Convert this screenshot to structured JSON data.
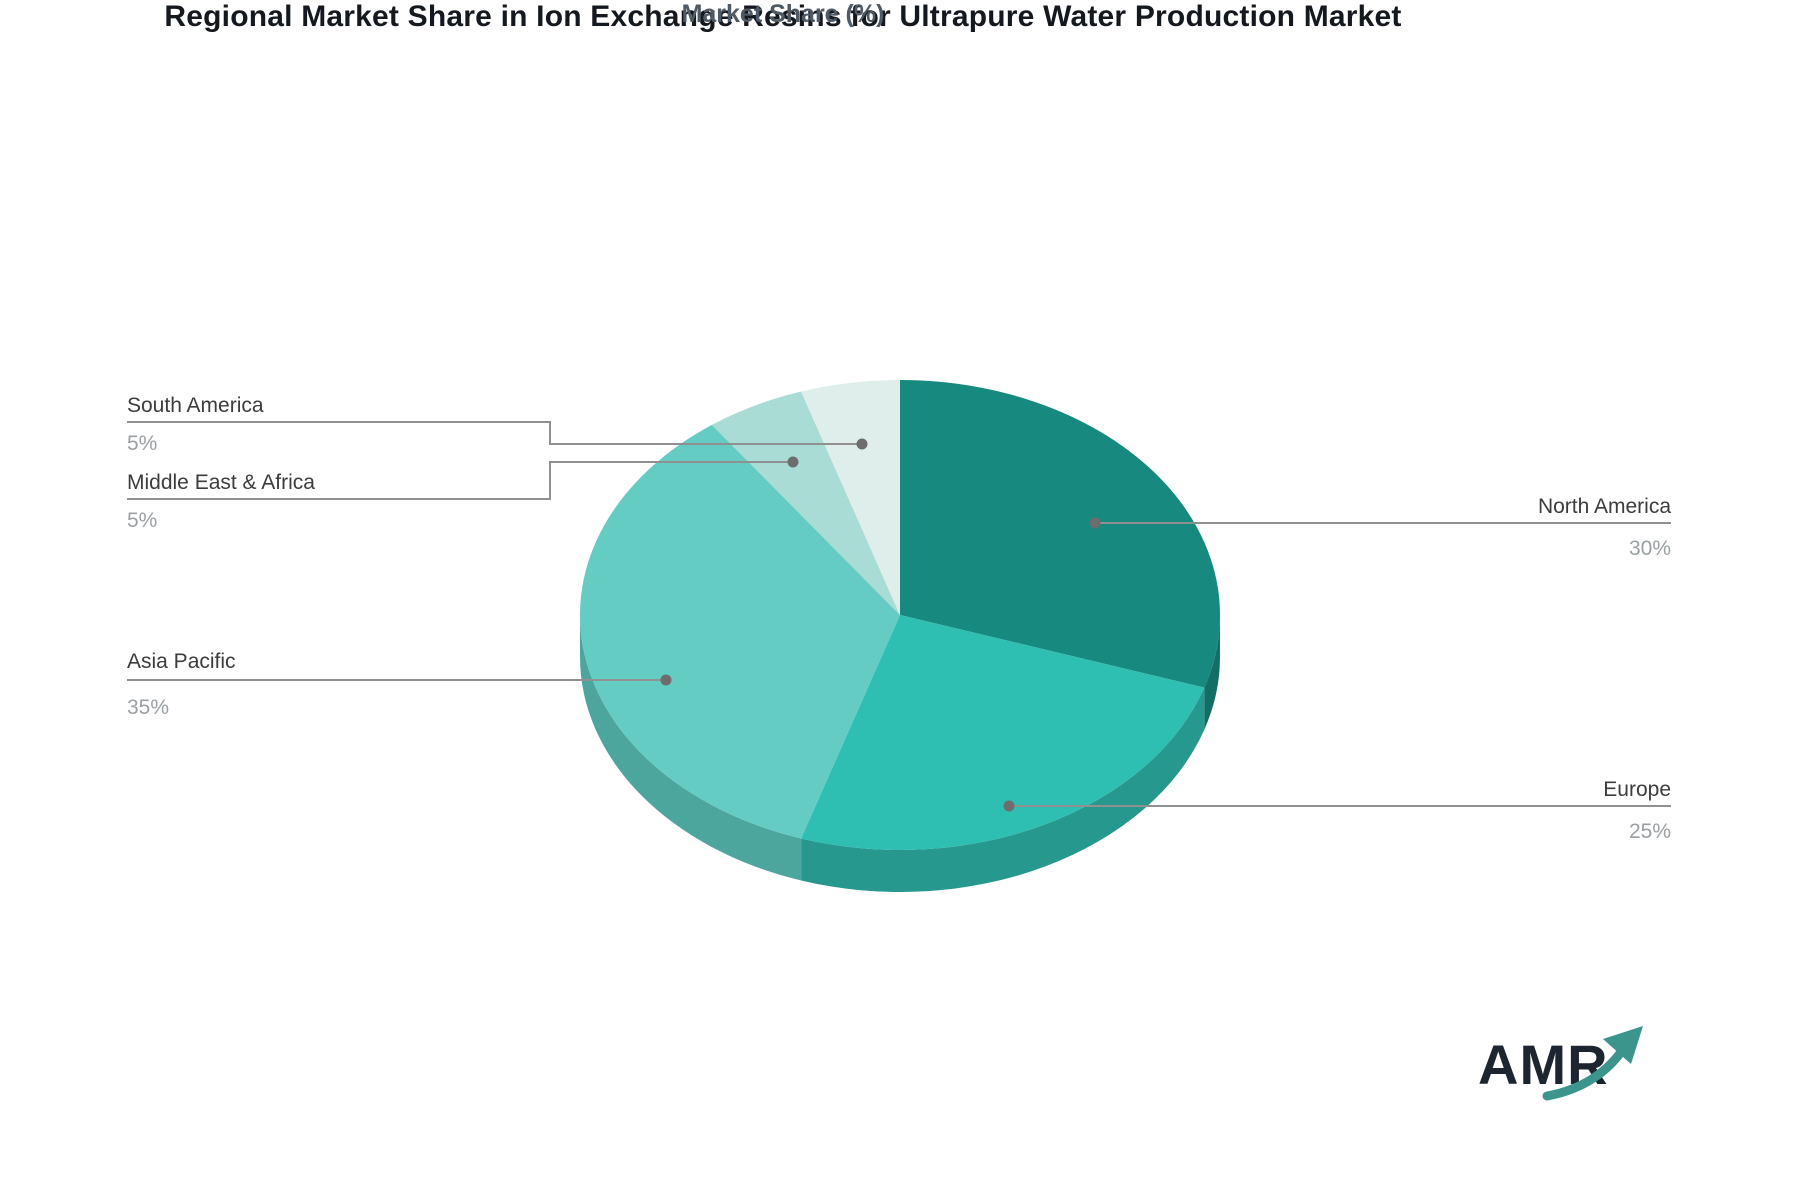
{
  "title": "Regional Market Share in Ion Exchange Resins for Ultrapure Water Production Market",
  "subtitle": "Market Share (%)",
  "logo": {
    "text": "AMR"
  },
  "colors": {
    "background": "#ffffff",
    "title_text": "#14181f",
    "subtitle_text": "#4e5a66",
    "label_text": "#3c3c3c",
    "value_text": "#9aa0a3",
    "leader_line": "#909090",
    "leader_dot": "#6d6d6d",
    "logo_text": "#1d2531",
    "logo_arrow": "#3b958c"
  },
  "chart_data": {
    "type": "pie",
    "title": "Regional Market Share in Ion Exchange Resins for Ultrapure Water Production Market",
    "subtitle": "Market Share (%)",
    "unit": "%",
    "start_angle_deg": 0,
    "direction": "clockwise",
    "effect_3d": true,
    "legend_position": "callout-labels",
    "slices": [
      {
        "label": "North America",
        "value": 30,
        "display": "30%",
        "color": "#17897f",
        "depth_color": "#136e66"
      },
      {
        "label": "Europe",
        "value": 25,
        "display": "25%",
        "color": "#2fbeb2",
        "depth_color": "#26988e"
      },
      {
        "label": "Asia Pacific",
        "value": 35,
        "display": "35%",
        "color": "#64ccc2",
        "depth_color": "#4da69d"
      },
      {
        "label": "Middle East & Africa",
        "value": 5,
        "display": "5%",
        "color": "#aadcd6",
        "depth_color": "#8bb9b3"
      },
      {
        "label": "South America",
        "value": 5,
        "display": "5%",
        "color": "#dfeeeb",
        "depth_color": "#bccfcb"
      }
    ]
  }
}
